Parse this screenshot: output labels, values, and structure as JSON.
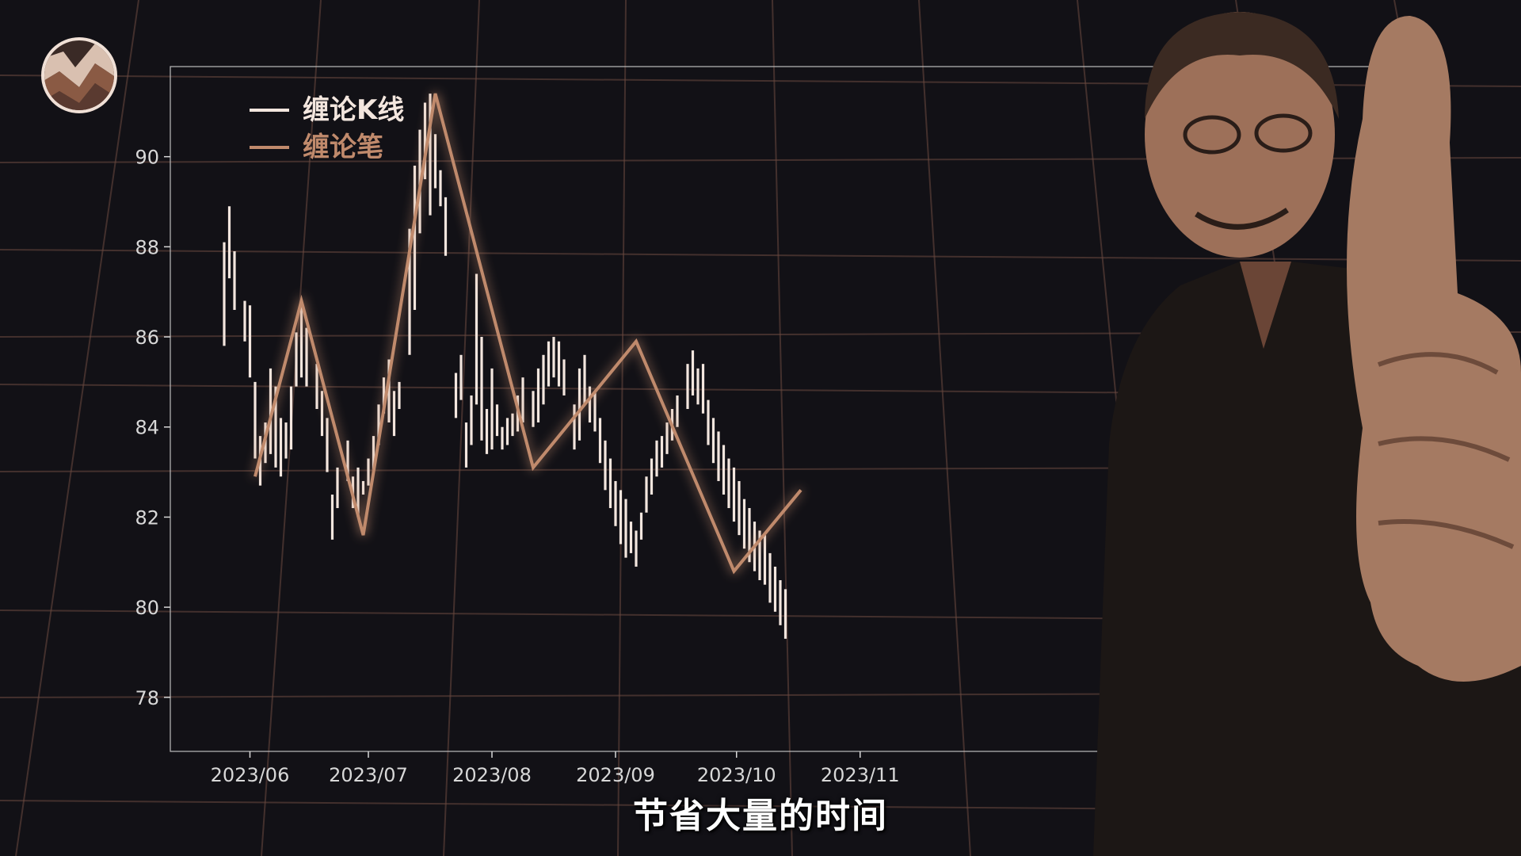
{
  "subtitle": "节省大量的时间",
  "colors": {
    "background": "#121116",
    "grid": "#6b4a40",
    "kline": "#f3e6de",
    "bi": "#c08a6c",
    "axis": "#d8d8d8"
  },
  "chart_data": {
    "type": "line",
    "title": "",
    "xlabel": "",
    "ylabel": "",
    "ylim": [
      76.8,
      92.0
    ],
    "yticks": [
      "78",
      "80",
      "82",
      "84",
      "86",
      "88",
      "90"
    ],
    "xtick_labels": [
      "2023/06",
      "2023/07",
      "2023/08",
      "2023/09",
      "2023/10",
      "2023/11"
    ],
    "legend": {
      "placement": "top-left",
      "entries": [
        {
          "name": "缠论K线",
          "color": "#f3e6de"
        },
        {
          "name": "缠论笔",
          "color": "#c08a6c"
        }
      ]
    },
    "series": [
      {
        "name": "缠论K线",
        "kind": "hl_bars",
        "x": [
          0,
          1,
          2,
          4,
          5,
          6,
          7,
          8,
          9,
          10,
          11,
          12,
          13,
          14,
          15,
          16,
          18,
          19,
          20,
          21,
          22,
          24,
          25,
          26,
          27,
          28,
          29,
          30,
          31,
          32,
          33,
          34,
          36,
          37,
          38,
          39,
          40,
          41,
          42,
          43,
          45,
          46,
          47,
          48,
          49,
          50,
          51,
          52,
          53,
          54,
          55,
          56,
          57,
          58,
          60,
          61,
          62,
          63,
          64,
          65,
          66,
          68,
          69,
          70,
          71,
          72,
          73,
          74,
          75,
          76,
          77,
          78,
          79,
          80,
          81,
          82,
          83,
          84,
          85,
          86,
          87,
          88,
          90,
          91,
          92,
          93,
          94,
          95,
          96,
          97,
          98,
          99,
          100,
          101,
          102,
          103,
          104,
          105,
          106,
          107,
          108,
          109
        ],
        "high": [
          88.1,
          88.9,
          87.9,
          86.8,
          86.7,
          85.0,
          83.8,
          84.1,
          85.3,
          84.9,
          84.2,
          84.1,
          84.9,
          86.1,
          86.8,
          86.2,
          85.4,
          84.8,
          84.2,
          82.5,
          83.1,
          83.7,
          82.9,
          83.1,
          82.8,
          83.3,
          83.8,
          84.5,
          85.1,
          85.5,
          84.8,
          85.0,
          88.4,
          89.8,
          90.6,
          91.2,
          91.4,
          90.5,
          89.7,
          89.1,
          85.2,
          85.6,
          84.1,
          84.7,
          87.4,
          86.0,
          84.4,
          85.3,
          84.5,
          84.0,
          84.2,
          84.3,
          84.7,
          85.1,
          84.8,
          85.3,
          85.6,
          85.9,
          86.0,
          85.9,
          85.5,
          84.5,
          85.3,
          85.6,
          84.9,
          84.8,
          84.2,
          83.7,
          83.3,
          82.8,
          82.6,
          82.4,
          81.9,
          81.7,
          82.1,
          82.9,
          83.3,
          83.7,
          83.8,
          84.1,
          84.4,
          84.7,
          85.4,
          85.7,
          85.3,
          85.4,
          84.6,
          84.2,
          83.9,
          83.6,
          83.3,
          83.1,
          82.8,
          82.4,
          82.2,
          81.9,
          81.7,
          81.6,
          81.2,
          80.9,
          80.6,
          80.4
        ],
        "low": [
          85.8,
          87.3,
          86.6,
          85.9,
          85.1,
          83.3,
          82.7,
          83.2,
          83.4,
          83.1,
          82.9,
          83.3,
          83.5,
          84.9,
          85.1,
          84.9,
          84.4,
          83.8,
          83.0,
          81.5,
          82.2,
          82.8,
          82.2,
          82.0,
          82.5,
          82.7,
          83.0,
          83.6,
          84.3,
          84.1,
          83.8,
          84.4,
          85.6,
          86.6,
          88.3,
          89.5,
          88.7,
          89.3,
          88.9,
          87.8,
          84.2,
          84.6,
          83.1,
          83.6,
          84.5,
          83.7,
          83.4,
          83.5,
          83.8,
          83.5,
          83.6,
          83.8,
          83.9,
          84.1,
          84.0,
          84.1,
          84.5,
          84.9,
          85.1,
          84.9,
          84.7,
          83.5,
          83.7,
          84.5,
          84.1,
          83.9,
          83.2,
          82.6,
          82.2,
          81.8,
          81.4,
          81.1,
          81.2,
          80.9,
          81.5,
          82.1,
          82.5,
          82.9,
          83.1,
          83.4,
          83.7,
          84.0,
          84.4,
          84.7,
          84.5,
          84.3,
          83.6,
          83.2,
          82.8,
          82.5,
          82.2,
          81.9,
          81.6,
          81.3,
          81.0,
          80.8,
          80.6,
          80.5,
          80.1,
          79.9,
          79.6,
          79.3
        ]
      },
      {
        "name": "缠论笔",
        "kind": "line",
        "x": [
          6,
          15,
          27,
          41,
          60,
          80,
          99,
          112
        ],
        "y": [
          82.9,
          86.8,
          81.6,
          91.4,
          83.1,
          85.9,
          80.8,
          82.6
        ]
      }
    ],
    "grid": true
  }
}
